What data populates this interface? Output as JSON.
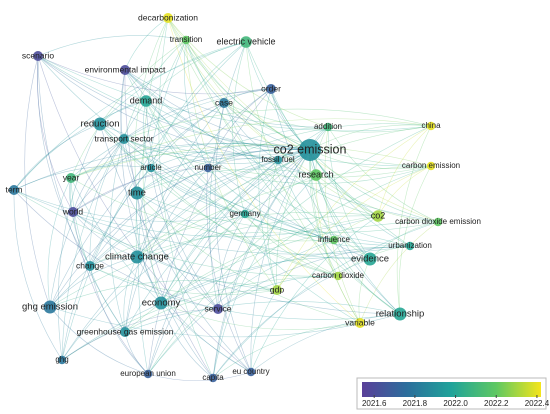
{
  "chart_data": {
    "type": "network",
    "labels": [
      "decarbonization",
      "transition",
      "electric vehicle",
      "scenario",
      "environmental impact",
      "order",
      "demand",
      "case",
      "addition",
      "china",
      "reduction",
      "transport sector",
      "co2 emission",
      "fossil fuel",
      "article",
      "number",
      "research",
      "carbon emission",
      "term",
      "year",
      "time",
      "world",
      "germany",
      "co2",
      "carbon dioxide emission",
      "influence",
      "urbanization",
      "climate change",
      "evidence",
      "change",
      "carbon dioxide",
      "gdp",
      "economy",
      "ghg emission",
      "service",
      "relationship",
      "variable",
      "greenhouse gas emission",
      "ghg",
      "european union",
      "capita",
      "eu country"
    ],
    "values": [
      2022.4,
      2022.2,
      2022.1,
      2021.6,
      2021.6,
      2021.7,
      2022.0,
      2021.8,
      2022.1,
      2022.4,
      2021.9,
      2021.9,
      2021.9,
      2021.9,
      2021.9,
      2021.7,
      2022.2,
      2022.4,
      2021.8,
      2022.1,
      2021.9,
      2021.6,
      2022.0,
      2022.3,
      2022.2,
      2022.2,
      2022.0,
      2021.9,
      2022.0,
      2021.9,
      2022.3,
      2022.3,
      2021.9,
      2021.8,
      2021.6,
      2022.0,
      2022.4,
      2021.9,
      2021.8,
      2021.7,
      2021.7,
      2021.7
    ],
    "sizes": [
      4,
      3,
      5,
      4,
      4,
      4,
      5,
      4,
      3,
      3,
      6,
      4,
      12,
      3,
      3,
      3,
      5,
      3,
      4,
      4,
      6,
      4,
      3,
      5,
      3,
      3,
      3,
      6,
      6,
      4,
      3,
      4,
      6,
      6,
      4,
      6,
      4,
      4,
      3,
      3,
      3,
      3
    ],
    "clim": [
      2021.54,
      2022.42
    ],
    "cticks": [
      2021.6,
      2021.8,
      {
        "value": 2022,
        "label": "2022.0"
      },
      2022.2,
      2022.4
    ],
    "colors": [
      "#5a3f99",
      "#2c6e9c",
      "#20a39a",
      "#5ec862",
      "#f5e51b"
    ]
  }
}
